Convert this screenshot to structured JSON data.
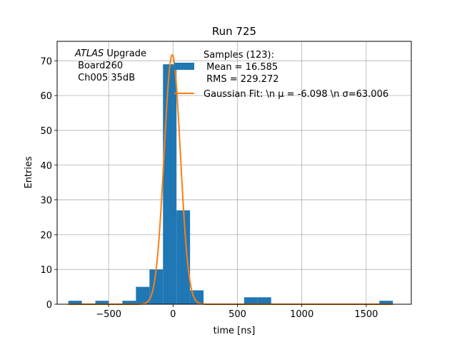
{
  "chart_data": {
    "type": "bar",
    "title": "Run 725",
    "xlabel": "time [ns]",
    "ylabel": "Entries",
    "xlim": [
      -900,
      1850
    ],
    "ylim": [
      0,
      75.6
    ],
    "grid": true,
    "xticks": [
      -500,
      0,
      500,
      1000,
      1500
    ],
    "xtick_labels": [
      "−500",
      "0",
      "500",
      "1000",
      "1500"
    ],
    "yticks": [
      0,
      10,
      20,
      30,
      40,
      50,
      60,
      70
    ],
    "ytick_labels": [
      "0",
      "10",
      "20",
      "30",
      "40",
      "50",
      "60",
      "70"
    ],
    "histogram": {
      "name": "Samples (123):",
      "color": "#1f77b4",
      "bins": [
        {
          "x0": -813,
          "x1": -708,
          "count": 1
        },
        {
          "x0": -708,
          "x1": -603,
          "count": 0
        },
        {
          "x0": -603,
          "x1": -498,
          "count": 1
        },
        {
          "x0": -498,
          "x1": -393,
          "count": 0
        },
        {
          "x0": -393,
          "x1": -288,
          "count": 1
        },
        {
          "x0": -288,
          "x1": -183,
          "count": 5
        },
        {
          "x0": -183,
          "x1": -78,
          "count": 10
        },
        {
          "x0": -78,
          "x1": 27,
          "count": 69
        },
        {
          "x0": 27,
          "x1": 132,
          "count": 27
        },
        {
          "x0": 132,
          "x1": 237,
          "count": 4
        },
        {
          "x0": 237,
          "x1": 342,
          "count": 0
        },
        {
          "x0": 342,
          "x1": 447,
          "count": 0
        },
        {
          "x0": 447,
          "x1": 552,
          "count": 0
        },
        {
          "x0": 552,
          "x1": 657,
          "count": 2
        },
        {
          "x0": 657,
          "x1": 762,
          "count": 2
        },
        {
          "x0": 762,
          "x1": 867,
          "count": 0
        },
        {
          "x0": 867,
          "x1": 972,
          "count": 0
        },
        {
          "x0": 972,
          "x1": 1077,
          "count": 0
        },
        {
          "x0": 1077,
          "x1": 1182,
          "count": 0
        },
        {
          "x0": 1182,
          "x1": 1287,
          "count": 0
        },
        {
          "x0": 1287,
          "x1": 1392,
          "count": 0
        },
        {
          "x0": 1392,
          "x1": 1497,
          "count": 0
        },
        {
          "x0": 1497,
          "x1": 1602,
          "count": 0
        },
        {
          "x0": 1602,
          "x1": 1707,
          "count": 1
        }
      ]
    },
    "fit": {
      "name": "Gaussian Fit: \\n μ = -6.098 \\n σ=63.006",
      "color": "#ff7f0e",
      "amplitude": 71.7,
      "mu": -6.098,
      "sigma": 63.006,
      "x_range": [
        -813,
        1707
      ]
    },
    "legend": {
      "placement": "top-center",
      "entries": [
        {
          "lines": [
            "Samples (123):",
            " Mean = 16.585",
            " RMS = 229.272"
          ]
        },
        {
          "lines": [
            "Gaussian Fit: \\n μ = -6.098 \\n σ=63.006"
          ]
        }
      ]
    },
    "annotation": {
      "lines": [
        "ATLAS Upgrade",
        " Board260",
        " Ch005 35dB"
      ]
    }
  }
}
